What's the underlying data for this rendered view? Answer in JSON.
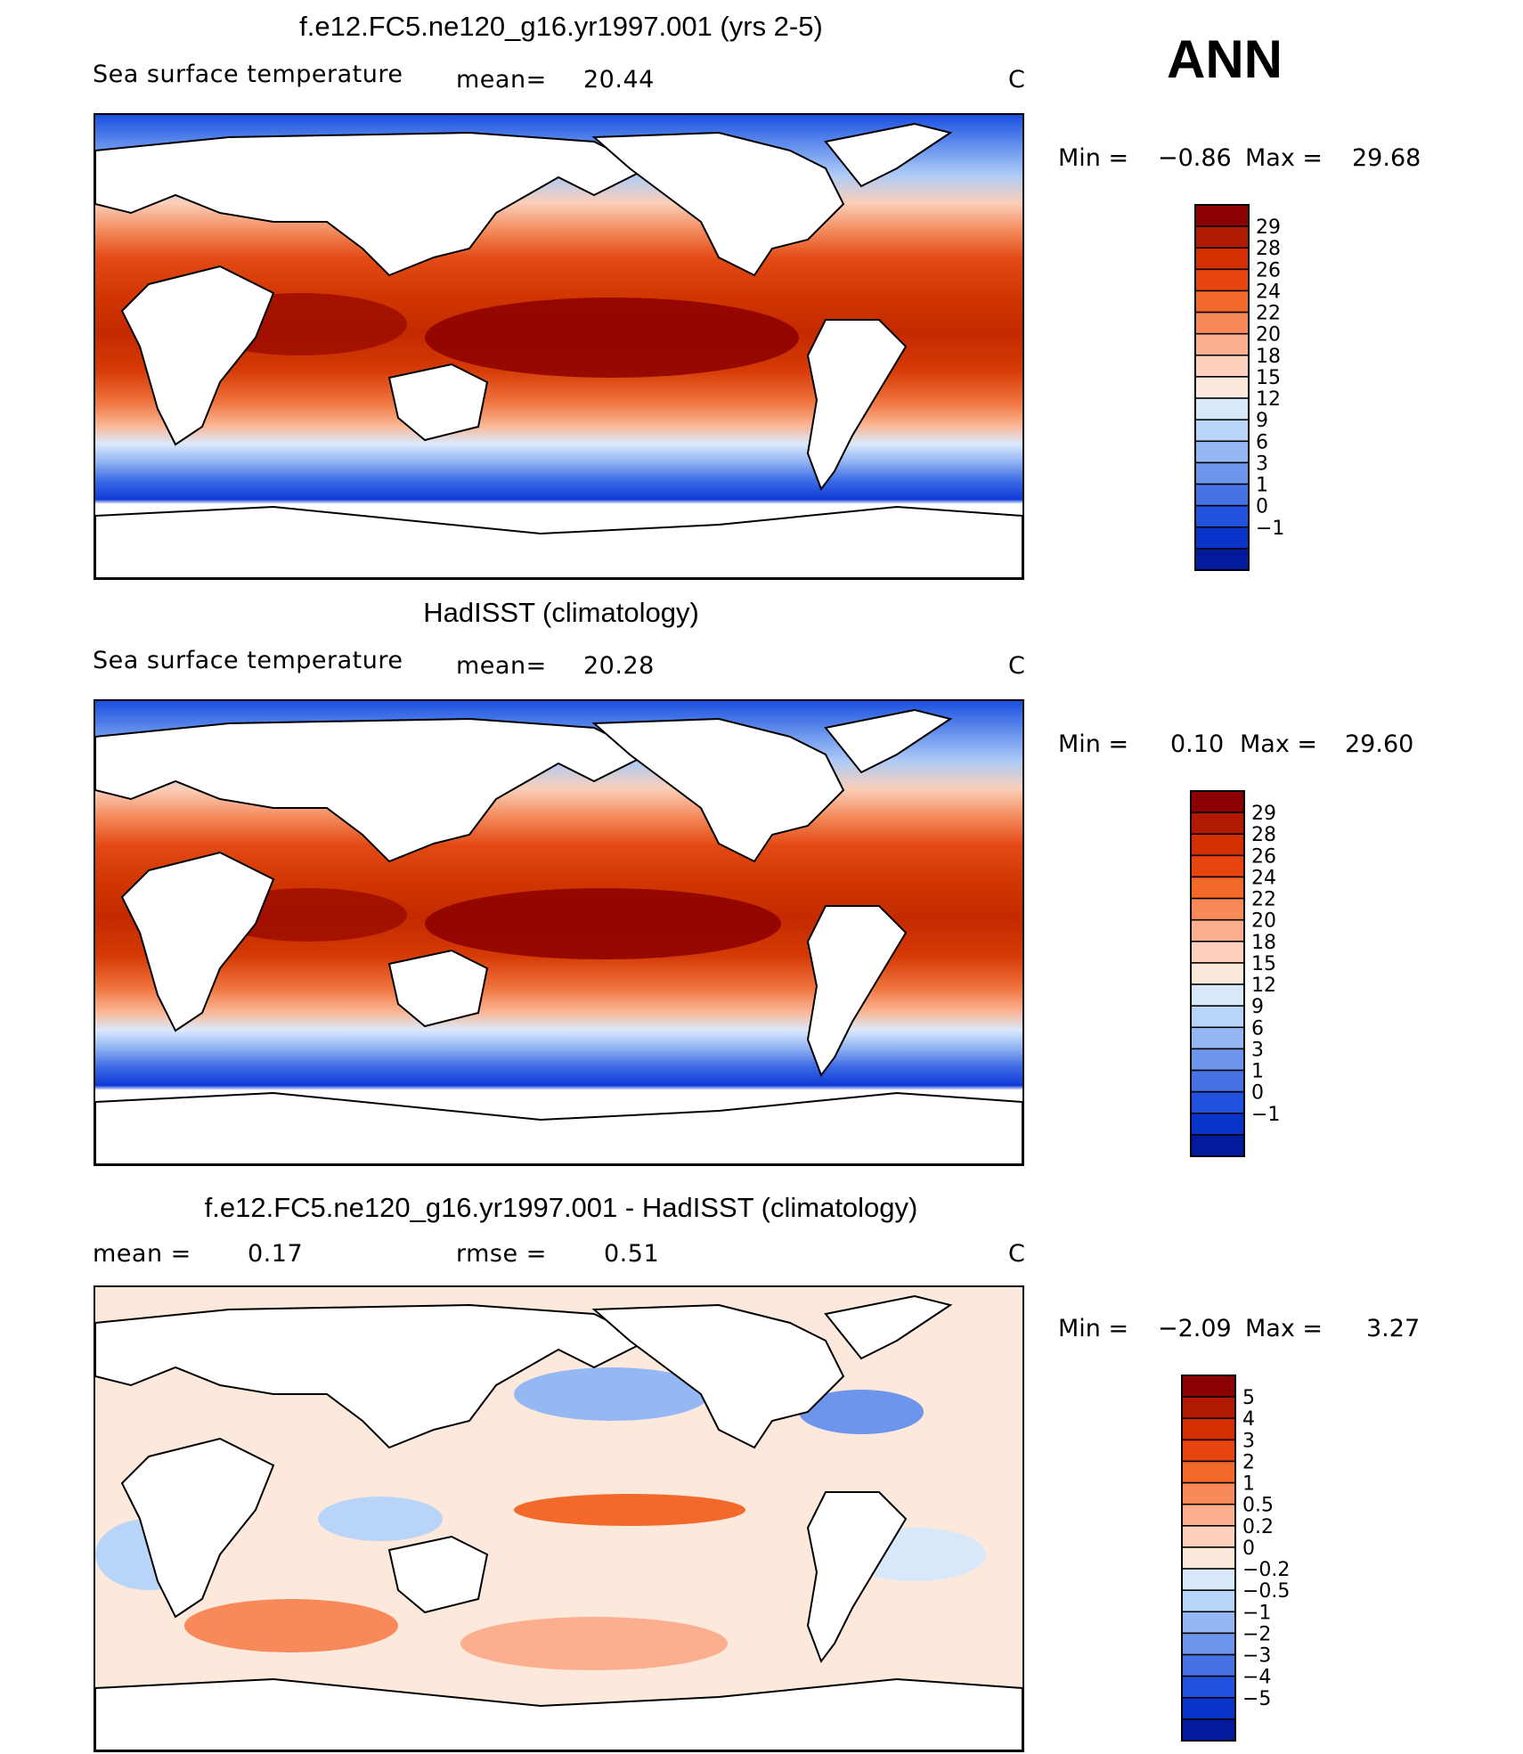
{
  "header": {
    "season": "ANN"
  },
  "panels": [
    {
      "title": "f.e12.FC5.ne120_g16.yr1997.001 (yrs 2-5)",
      "variable": "Sea surface temperature",
      "mean_label": "mean=",
      "mean_value": "20.44",
      "units": "C",
      "min_label": "Min =",
      "min_value": "−0.86",
      "max_label": "Max =",
      "max_value": "29.68",
      "colorbar": {
        "labels": [
          "29",
          "28",
          "26",
          "24",
          "22",
          "20",
          "18",
          "15",
          "12",
          "9",
          "6",
          "3",
          "1",
          "0",
          "−1"
        ],
        "colors": [
          "#8b0000",
          "#b01a00",
          "#d32f00",
          "#e8440f",
          "#f2692a",
          "#f7895a",
          "#fbaf8e",
          "#fdd1bd",
          "#fde9dc",
          "#d7e8fb",
          "#b9d4f9",
          "#95b7f4",
          "#6d95ec",
          "#4672e6",
          "#2151dd",
          "#0a33c9",
          "#021a9c"
        ]
      }
    },
    {
      "title": "HadISST (climatology)",
      "variable": "Sea surface temperature",
      "mean_label": "mean=",
      "mean_value": "20.28",
      "units": "C",
      "min_label": "Min =",
      "min_value": "0.10",
      "max_label": "Max =",
      "max_value": "29.60",
      "colorbar": {
        "labels": [
          "29",
          "28",
          "26",
          "24",
          "22",
          "20",
          "18",
          "15",
          "12",
          "9",
          "6",
          "3",
          "1",
          "0",
          "−1"
        ],
        "colors": [
          "#8b0000",
          "#b01a00",
          "#d32f00",
          "#e8440f",
          "#f2692a",
          "#f7895a",
          "#fbaf8e",
          "#fdd1bd",
          "#fde9dc",
          "#d7e8fb",
          "#b9d4f9",
          "#95b7f4",
          "#6d95ec",
          "#4672e6",
          "#2151dd",
          "#0a33c9",
          "#021a9c"
        ]
      }
    },
    {
      "title": "f.e12.FC5.ne120_g16.yr1997.001 - HadISST (climatology)",
      "mean_label": "mean =",
      "mean_value": "0.17",
      "rmse_label": "rmse =",
      "rmse_value": "0.51",
      "units": "C",
      "min_label": "Min =",
      "min_value": "−2.09",
      "max_label": "Max =",
      "max_value": "3.27",
      "colorbar": {
        "labels": [
          "5",
          "4",
          "3",
          "2",
          "1",
          "0.5",
          "0.2",
          "0",
          "−0.2",
          "−0.5",
          "−1",
          "−2",
          "−3",
          "−4",
          "−5"
        ],
        "colors": [
          "#8b0000",
          "#b01a00",
          "#d32f00",
          "#e8440f",
          "#f2692a",
          "#f7895a",
          "#fbaf8e",
          "#fdd1bd",
          "#fde9dc",
          "#d7e8fb",
          "#b9d4f9",
          "#95b7f4",
          "#6d95ec",
          "#4672e6",
          "#2151dd",
          "#0a33c9",
          "#021a9c"
        ]
      }
    }
  ],
  "chart_data": [
    {
      "type": "heatmap",
      "title": "f.e12.FC5.ne120_g16.yr1997.001 (yrs 2-5)",
      "variable": "Sea surface temperature",
      "units": "C",
      "mean": 20.44,
      "min": -0.86,
      "max": 29.68,
      "contour_levels": [
        -1,
        0,
        1,
        3,
        6,
        9,
        12,
        15,
        18,
        20,
        22,
        24,
        26,
        28,
        29
      ]
    },
    {
      "type": "heatmap",
      "title": "HadISST (climatology)",
      "variable": "Sea surface temperature",
      "units": "C",
      "mean": 20.28,
      "min": 0.1,
      "max": 29.6,
      "contour_levels": [
        -1,
        0,
        1,
        3,
        6,
        9,
        12,
        15,
        18,
        20,
        22,
        24,
        26,
        28,
        29
      ]
    },
    {
      "type": "heatmap",
      "title": "f.e12.FC5.ne120_g16.yr1997.001 - HadISST (climatology)",
      "units": "C",
      "mean": 0.17,
      "rmse": 0.51,
      "min": -2.09,
      "max": 3.27,
      "contour_levels": [
        -5,
        -4,
        -3,
        -2,
        -1,
        -0.5,
        -0.2,
        0,
        0.2,
        0.5,
        1,
        2,
        3,
        4,
        5
      ]
    }
  ]
}
